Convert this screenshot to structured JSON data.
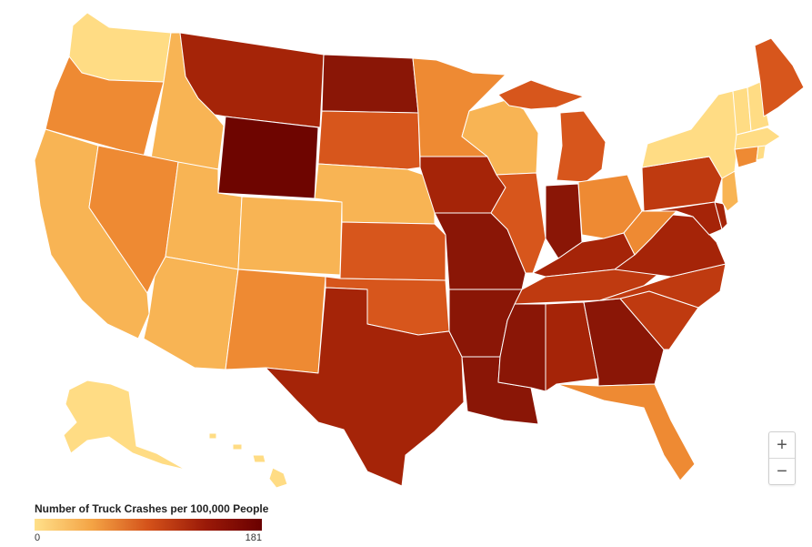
{
  "legend": {
    "title": "Number of Truck Crashes per 100,000 People",
    "min_label": "0",
    "max_label": "181",
    "gradient": [
      "#ffe08a",
      "#f4a445",
      "#d4521a",
      "#9b1a08",
      "#6a0000"
    ]
  },
  "zoom": {
    "in_label": "+",
    "out_label": "−"
  },
  "colors": {
    "c1": "#ffdc84",
    "c2": "#f8b454",
    "c3": "#ee8a33",
    "c4": "#d7561c",
    "c5": "#bf3a10",
    "c6": "#a52408",
    "c7": "#8a1606",
    "c8": "#6e0500",
    "border": "#ffffff"
  }
}
